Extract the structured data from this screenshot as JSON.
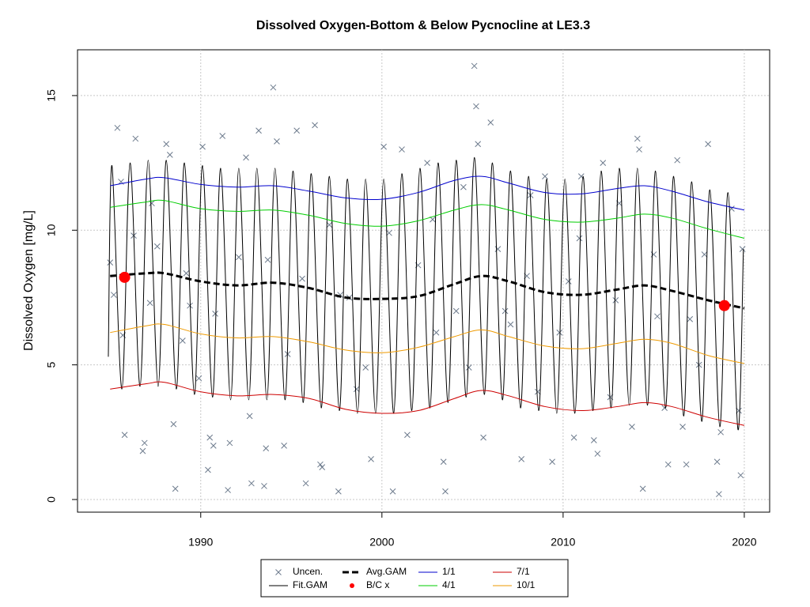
{
  "chart_data": {
    "type": "line",
    "title": "Dissolved Oxygen-Bottom & Below Pycnocline at LE3.3",
    "y_label": "Dissolved Oxygen [mg/L]",
    "xlim": [
      1983.2,
      2021.4
    ],
    "ylim": [
      -0.47,
      16.7
    ],
    "xticks": [
      1990,
      2000,
      2010,
      2020
    ],
    "yticks": [
      0,
      5,
      10,
      15
    ],
    "grid": true,
    "legend": "bottom",
    "series": [
      {
        "name": "Uncen.",
        "color": "#6c7a8c",
        "mode": "x-marker",
        "x": [
          1985.0,
          1985.2,
          1985.4,
          1985.6,
          1985.8,
          1985.7,
          1986.3,
          1986.4,
          1986.8,
          1986.9,
          1987.3,
          1987.6,
          1988.1,
          1988.3,
          1988.6,
          1988.5,
          1989.0,
          1989.4,
          1989.9,
          1990.1,
          1990.4,
          1990.5,
          1990.7,
          1991.2,
          1991.5,
          1991.6,
          1992.1,
          1992.5,
          1992.7,
          1992.8,
          1993.2,
          1993.5,
          1993.6,
          1994.0,
          1994.2,
          1994.6,
          1994.8,
          1995.3,
          1995.8,
          1996.3,
          1996.6,
          1996.7,
          1997.1,
          1997.6,
          1998.2,
          1998.6,
          1999.1,
          1999.4,
          2000.1,
          2000.6,
          2001.1,
          2001.4,
          2002.0,
          2002.5,
          2003.0,
          2003.4,
          2003.5,
          2004.5,
          2004.8,
          2005.1,
          2005.2,
          2005.3,
          2005.6,
          2006.0,
          2006.4,
          2007.1,
          2007.7,
          2008.2,
          2008.6,
          2009.0,
          2009.4,
          2009.8,
          2010.3,
          2010.6,
          2011.0,
          2011.7,
          2011.9,
          2012.2,
          2012.6,
          2013.1,
          2013.8,
          2014.1,
          2014.2,
          2014.4,
          2015.0,
          2015.6,
          2015.8,
          2016.3,
          2016.6,
          2016.8,
          2017.0,
          2017.5,
          2018.0,
          2018.5,
          2018.6,
          2018.7,
          2019.3,
          2019.7,
          2019.8,
          2019.9,
          1987.2,
          1989.2,
          1990.8,
          1993.7,
          1995.6,
          1997.7,
          2000.4,
          2002.8,
          2004.1,
          2006.8,
          2008.0,
          2010.9,
          2012.9,
          2015.2,
          2017.8
        ],
        "values": [
          8.8,
          7.6,
          13.8,
          11.8,
          2.4,
          6.1,
          9.8,
          13.4,
          1.8,
          2.1,
          11.0,
          9.4,
          13.2,
          12.8,
          0.4,
          2.8,
          5.9,
          7.2,
          4.5,
          13.1,
          1.1,
          2.3,
          2.0,
          13.5,
          0.35,
          2.1,
          9.0,
          12.7,
          3.1,
          0.6,
          13.7,
          0.5,
          1.9,
          15.3,
          13.3,
          2.0,
          5.4,
          13.7,
          0.6,
          13.9,
          1.3,
          1.2,
          10.2,
          0.3,
          7.5,
          4.1,
          4.9,
          1.5,
          13.1,
          0.3,
          13.0,
          2.4,
          8.7,
          12.5,
          6.2,
          1.4,
          0.3,
          11.6,
          4.9,
          16.1,
          14.6,
          13.2,
          2.3,
          14.0,
          9.3,
          6.5,
          1.5,
          11.3,
          4.0,
          12.0,
          1.4,
          6.2,
          8.1,
          2.3,
          12.0,
          2.2,
          1.7,
          12.5,
          3.8,
          11.0,
          2.7,
          13.4,
          13.0,
          0.4,
          9.1,
          3.4,
          1.3,
          12.6,
          2.7,
          1.3,
          6.7,
          5.0,
          13.2,
          1.4,
          0.2,
          2.5,
          10.8,
          3.3,
          0.9,
          9.3,
          7.3,
          8.4,
          6.9,
          8.9,
          8.2,
          7.6,
          9.9,
          10.4,
          7.0,
          7.0,
          8.3,
          9.7,
          7.4,
          6.8,
          9.1
        ]
      },
      {
        "name": "Fit.GAM",
        "color": "#000000",
        "mode": "smooth",
        "x": [
          1984.9,
          1985.1,
          1985.65,
          1986.1,
          1986.65,
          1987.1,
          1987.65,
          1988.1,
          1988.65,
          1989.1,
          1989.65,
          1990.1,
          1990.65,
          1991.1,
          1991.65,
          1992.1,
          1992.65,
          1993.1,
          1993.65,
          1994.1,
          1994.65,
          1995.1,
          1995.65,
          1996.1,
          1996.65,
          1997.1,
          1997.65,
          1998.1,
          1998.65,
          1999.1,
          1999.65,
          2000.1,
          2000.65,
          2001.1,
          2001.65,
          2002.1,
          2002.65,
          2003.1,
          2003.65,
          2004.1,
          2004.65,
          2005.1,
          2005.65,
          2006.1,
          2006.65,
          2007.1,
          2007.65,
          2008.1,
          2008.65,
          2009.1,
          2009.65,
          2010.1,
          2010.65,
          2011.1,
          2011.65,
          2012.1,
          2012.65,
          2013.1,
          2013.65,
          2014.1,
          2014.65,
          2015.1,
          2015.65,
          2016.1,
          2016.65,
          2017.1,
          2017.65,
          2018.1,
          2018.65,
          2019.1,
          2019.65,
          2019.95
        ],
        "values": [
          5.3,
          12.4,
          4.1,
          12.5,
          4.2,
          12.6,
          4.2,
          12.6,
          4.1,
          12.5,
          3.9,
          12.4,
          3.8,
          12.3,
          3.7,
          12.3,
          3.7,
          12.3,
          3.7,
          12.3,
          3.7,
          12.2,
          3.6,
          12.1,
          3.4,
          12.0,
          3.3,
          11.9,
          3.2,
          11.9,
          3.2,
          11.9,
          3.2,
          12.1,
          3.3,
          12.3,
          3.4,
          12.5,
          3.6,
          12.6,
          3.8,
          12.7,
          3.9,
          12.5,
          3.7,
          12.2,
          3.4,
          12.0,
          3.3,
          11.9,
          3.2,
          11.9,
          3.2,
          12.0,
          3.3,
          12.2,
          3.4,
          12.3,
          3.5,
          12.3,
          3.5,
          12.2,
          3.4,
          12.0,
          3.1,
          11.8,
          2.9,
          11.5,
          2.7,
          11.4,
          2.6,
          9.3
        ]
      },
      {
        "name": "Avg.GAM",
        "color": "#000000",
        "mode": "dashed",
        "x": [
          1985,
          1987,
          1988,
          1990,
          1992,
          1994,
          1996,
          1998,
          2000,
          2002,
          2004,
          2005.5,
          2007,
          2009,
          2011,
          2013,
          2014.5,
          2016,
          2018,
          2020
        ],
        "values": [
          8.3,
          8.4,
          8.4,
          8.1,
          7.95,
          8.05,
          7.85,
          7.5,
          7.45,
          7.55,
          8.0,
          8.3,
          8.1,
          7.7,
          7.6,
          7.8,
          7.95,
          7.75,
          7.4,
          7.1
        ]
      },
      {
        "name": "B/C x",
        "color": "#ff0000",
        "mode": "dot",
        "x": [
          1985.8,
          2018.9
        ],
        "values": [
          8.25,
          7.2
        ]
      },
      {
        "name": "1/1",
        "color": "#0000cd",
        "mode": "solid",
        "x": [
          1985,
          1987,
          1988,
          1990,
          1992,
          1994,
          1996,
          1998,
          2000,
          2002,
          2004,
          2005.5,
          2007,
          2009,
          2011,
          2013,
          2014.5,
          2016,
          2018,
          2020
        ],
        "values": [
          11.65,
          11.9,
          11.95,
          11.7,
          11.6,
          11.65,
          11.45,
          11.2,
          11.15,
          11.4,
          11.85,
          12.0,
          11.75,
          11.4,
          11.35,
          11.55,
          11.65,
          11.45,
          11.05,
          10.75
        ]
      },
      {
        "name": "4/1",
        "color": "#00cd00",
        "mode": "solid",
        "x": [
          1985,
          1987,
          1988,
          1990,
          1992,
          1994,
          1996,
          1998,
          2000,
          2002,
          2004,
          2005.5,
          2007,
          2009,
          2011,
          2013,
          2014.5,
          2016,
          2018,
          2020
        ],
        "values": [
          10.85,
          11.05,
          11.1,
          10.8,
          10.7,
          10.75,
          10.55,
          10.25,
          10.15,
          10.35,
          10.75,
          10.95,
          10.75,
          10.4,
          10.3,
          10.45,
          10.6,
          10.45,
          10.05,
          9.7
        ]
      },
      {
        "name": "7/1",
        "color": "#cd0000",
        "mode": "solid",
        "x": [
          1985,
          1987,
          1988,
          1990,
          1992,
          1994,
          1996,
          1998,
          2000,
          2002,
          2004,
          2005.5,
          2007,
          2009,
          2011,
          2013,
          2014.5,
          2016,
          2018,
          2020
        ],
        "values": [
          4.1,
          4.3,
          4.35,
          4.0,
          3.85,
          3.9,
          3.75,
          3.35,
          3.2,
          3.3,
          3.75,
          4.05,
          3.85,
          3.45,
          3.3,
          3.45,
          3.6,
          3.45,
          3.05,
          2.75
        ]
      },
      {
        "name": "10/1",
        "color": "#ee9a00",
        "mode": "solid",
        "x": [
          1985,
          1987,
          1988,
          1990,
          1992,
          1994,
          1996,
          1998,
          2000,
          2002,
          2004,
          2005.5,
          2007,
          2009,
          2011,
          2013,
          2014.5,
          2016,
          2018,
          2020
        ],
        "values": [
          6.2,
          6.45,
          6.5,
          6.15,
          6.0,
          6.05,
          5.85,
          5.55,
          5.45,
          5.65,
          6.05,
          6.3,
          6.05,
          5.7,
          5.6,
          5.8,
          5.95,
          5.8,
          5.35,
          5.05
        ]
      }
    ]
  }
}
